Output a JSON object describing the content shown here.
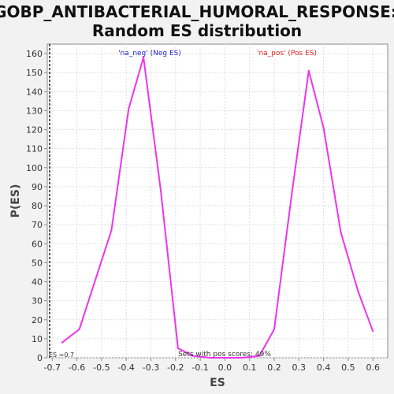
{
  "chart_data": {
    "type": "line",
    "title_lines": [
      "GOBP_ANTIBACTERIAL_HUMORAL_RESPONSE:",
      "Random ES distribution"
    ],
    "xlabel": "ES",
    "ylabel": "P(ES)",
    "xlim": [
      -0.72,
      0.66
    ],
    "ylim": [
      0,
      165
    ],
    "x_ticks": [
      -0.7,
      -0.6,
      -0.5,
      -0.4,
      -0.3,
      -0.2,
      -0.1,
      0.0,
      0.1,
      0.2,
      0.3,
      0.4,
      0.5,
      0.6
    ],
    "x_tick_labels": [
      "-0.7",
      "-0.6",
      "-0.5",
      "-0.4",
      "-0.3",
      "-0.2",
      "-0.1",
      "0.0",
      "0.1",
      "0.2",
      "0.3",
      "0.4",
      "0.5",
      "0.6"
    ],
    "y_ticks": [
      0,
      10,
      20,
      30,
      40,
      50,
      60,
      70,
      80,
      90,
      100,
      110,
      120,
      130,
      140,
      150,
      160
    ],
    "grid": true,
    "series": [
      {
        "color": "#ee33ee",
        "points": [
          [
            -0.66,
            8
          ],
          [
            -0.59,
            15
          ],
          [
            -0.52,
            43
          ],
          [
            -0.46,
            67
          ],
          [
            -0.39,
            131
          ],
          [
            -0.33,
            158
          ],
          [
            -0.26,
            88
          ],
          [
            -0.19,
            5
          ],
          [
            -0.13,
            1
          ],
          [
            -0.06,
            0
          ],
          [
            0.0,
            0
          ],
          [
            0.07,
            0
          ],
          [
            0.14,
            1
          ],
          [
            0.2,
            15
          ],
          [
            0.27,
            85
          ],
          [
            0.34,
            151
          ],
          [
            0.4,
            121
          ],
          [
            0.47,
            66
          ],
          [
            0.54,
            35
          ],
          [
            0.6,
            14
          ]
        ]
      }
    ],
    "annotations": {
      "neg_label": "'na_neg' (Neg ES)",
      "pos_label": "'na_pos' (Pos ES)",
      "neg_color": "#2222dd",
      "pos_color": "#dd2222",
      "es_marker": "ES =0.7",
      "sets_text": "Sets with pos scores: 49%"
    }
  }
}
